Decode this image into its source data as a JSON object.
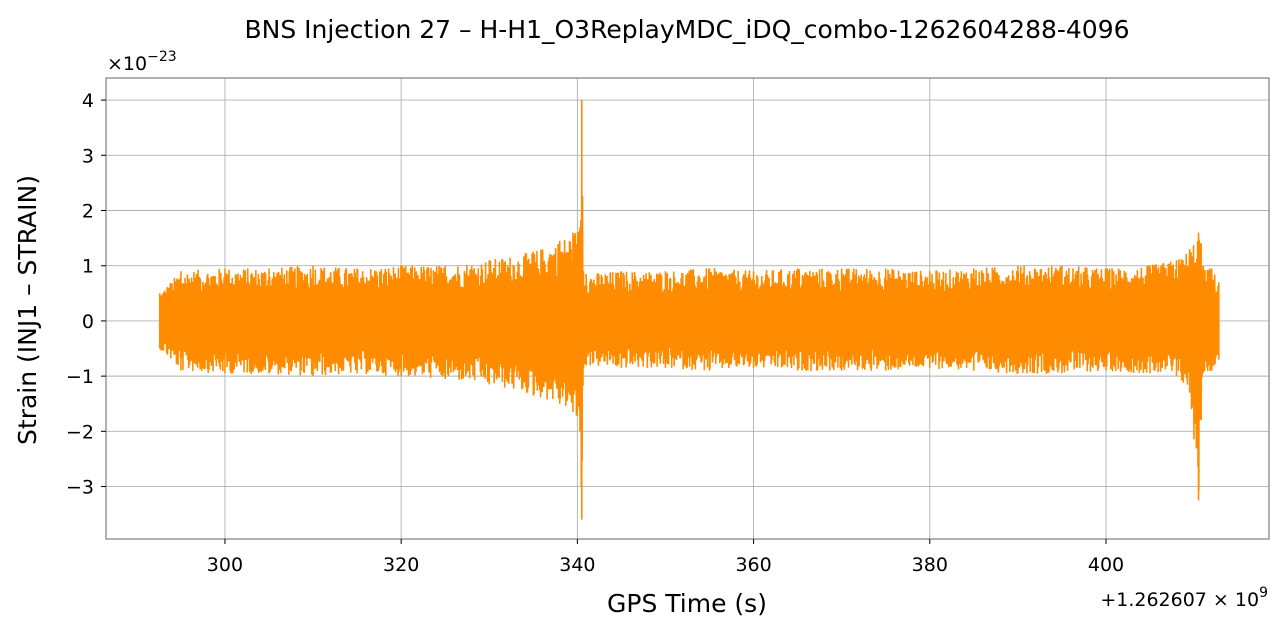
{
  "chart_data": {
    "type": "line",
    "title": "BNS Injection 27 – H-H1_O3ReplayMDC_iDQ_combo-1262604288-4096",
    "xlabel": "GPS Time (s)",
    "ylabel": "Strain (INJ1 – STRAIN)",
    "x_offset_label": "+1.262607 × 10^9",
    "y_scale_label": "×10^−23",
    "xlim": [
      286.5,
      418.5
    ],
    "ylim": [
      -3.95,
      4.4
    ],
    "x_ticks": [
      300,
      320,
      340,
      360,
      380,
      400
    ],
    "x_tick_labels": [
      "300",
      "320",
      "340",
      "360",
      "380",
      "400"
    ],
    "y_ticks": [
      -3,
      -2,
      -1,
      0,
      1,
      2,
      3,
      4
    ],
    "y_tick_labels": [
      "−3",
      "−2",
      "−1",
      "0",
      "1",
      "2",
      "3",
      "4"
    ],
    "grid": true,
    "series": [
      {
        "color": "#ff8c00",
        "x": [
          292.6,
          295,
          300,
          305,
          310,
          315,
          320,
          325,
          330,
          335,
          338,
          339.5,
          340.3,
          340.5,
          340.7,
          341,
          345,
          350,
          355,
          360,
          365,
          370,
          375,
          380,
          385,
          390,
          395,
          400,
          405,
          408,
          409.5,
          410.5,
          410.8,
          411,
          412,
          412.8
        ],
        "upper": [
          0.5,
          0.9,
          0.95,
          0.95,
          1.0,
          0.95,
          1.0,
          1.0,
          1.1,
          1.25,
          1.45,
          1.6,
          1.7,
          4.0,
          0.9,
          0.85,
          0.9,
          0.9,
          0.95,
          0.9,
          0.95,
          0.95,
          0.95,
          0.9,
          0.95,
          1.0,
          1.0,
          0.95,
          1.0,
          1.1,
          1.3,
          1.6,
          1.4,
          1.0,
          0.95,
          0.7
        ],
        "lower": [
          -0.5,
          -0.9,
          -0.95,
          -0.95,
          -1.0,
          -0.95,
          -1.0,
          -1.05,
          -1.15,
          -1.35,
          -1.5,
          -1.65,
          -2.0,
          -3.6,
          -0.85,
          -0.8,
          -0.85,
          -0.85,
          -0.9,
          -0.85,
          -0.9,
          -0.9,
          -0.9,
          -0.85,
          -0.9,
          -0.95,
          -0.95,
          -0.9,
          -0.95,
          -1.0,
          -1.3,
          -3.25,
          -1.8,
          -0.95,
          -0.9,
          -0.7
        ]
      }
    ]
  }
}
